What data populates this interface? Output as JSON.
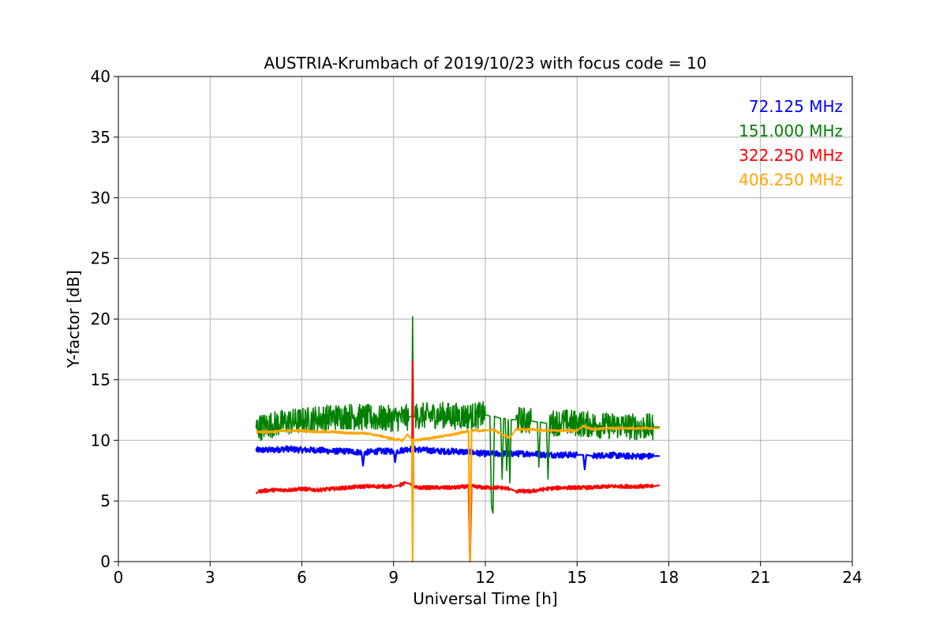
{
  "chart_data": {
    "type": "line",
    "title": "AUSTRIA-Krumbach of 2019/10/23 with focus code = 10",
    "xlabel": "Universal Time [h]",
    "ylabel": "Y-factor [dB]",
    "xlim": [
      0,
      24
    ],
    "ylim": [
      0,
      40
    ],
    "xticks": [
      0,
      3,
      6,
      9,
      12,
      15,
      18,
      21,
      24
    ],
    "yticks": [
      0,
      5,
      10,
      15,
      20,
      25,
      30,
      35,
      40
    ],
    "grid": true,
    "legend_position": "top-right",
    "series": [
      {
        "name": "72.125 MHz",
        "color": "#0000ff",
        "noise": 0.25,
        "x": [
          4.5,
          5.0,
          5.5,
          6.0,
          6.5,
          7.0,
          7.5,
          7.95,
          8.0,
          8.05,
          8.5,
          9.0,
          9.05,
          9.1,
          9.5,
          10.0,
          10.5,
          11.0,
          11.5,
          12.0,
          12.5,
          13.0,
          13.5,
          14.0,
          14.5,
          15.0,
          15.2,
          15.25,
          15.3,
          15.5,
          16.0,
          16.5,
          17.0,
          17.5,
          17.7
        ],
        "y": [
          9.2,
          9.2,
          9.3,
          9.2,
          9.2,
          9.1,
          9.1,
          9.0,
          7.9,
          9.0,
          9.1,
          9.1,
          8.2,
          9.1,
          9.3,
          9.2,
          9.1,
          9.1,
          9.0,
          8.9,
          8.9,
          8.9,
          8.9,
          8.8,
          8.8,
          8.8,
          8.8,
          7.6,
          8.8,
          8.7,
          8.8,
          8.7,
          8.7,
          8.7,
          8.7
        ]
      },
      {
        "name": "151.000 MHz",
        "color": "#008000",
        "noise": 1.1,
        "x": [
          4.5,
          5.0,
          5.5,
          6.0,
          6.5,
          7.0,
          7.5,
          8.0,
          8.5,
          9.0,
          9.5,
          9.6,
          9.62,
          9.65,
          9.7,
          10.0,
          10.5,
          11.0,
          11.5,
          12.0,
          12.15,
          12.2,
          12.25,
          12.3,
          12.35,
          12.4,
          12.5,
          12.55,
          12.6,
          12.65,
          12.7,
          12.75,
          12.8,
          12.85,
          12.9,
          13.0,
          13.5,
          13.7,
          13.75,
          13.8,
          14.0,
          14.05,
          14.1,
          14.5,
          15.0,
          15.5,
          16.0,
          16.5,
          17.0,
          17.5,
          17.7
        ],
        "y": [
          11.0,
          11.3,
          11.5,
          11.6,
          11.8,
          11.9,
          12.0,
          11.9,
          11.8,
          11.8,
          11.9,
          12.0,
          20.2,
          11.9,
          12.0,
          12.0,
          12.1,
          12.0,
          12.0,
          12.1,
          12.0,
          4.5,
          4.0,
          12.0,
          11.9,
          11.9,
          11.8,
          6.8,
          11.8,
          11.8,
          7.5,
          11.7,
          6.5,
          11.7,
          11.7,
          11.7,
          11.6,
          11.5,
          7.8,
          11.5,
          11.4,
          6.8,
          11.4,
          11.5,
          11.4,
          11.3,
          11.2,
          11.2,
          11.1,
          11.1,
          11.1
        ]
      },
      {
        "name": "322.250 MHz",
        "color": "#ff0000",
        "noise": 0.15,
        "x": [
          4.5,
          4.6,
          5.0,
          5.5,
          6.0,
          6.5,
          7.0,
          7.5,
          8.0,
          8.5,
          9.0,
          9.2,
          9.4,
          9.55,
          9.6,
          9.62,
          9.65,
          9.7,
          10.0,
          10.5,
          11.0,
          11.45,
          11.5,
          11.55,
          12.0,
          12.5,
          12.8,
          13.0,
          13.5,
          14.0,
          14.5,
          15.0,
          15.5,
          16.0,
          16.5,
          17.0,
          17.5,
          17.7
        ],
        "y": [
          5.6,
          5.8,
          5.9,
          5.9,
          6.0,
          5.9,
          6.0,
          6.1,
          6.2,
          6.2,
          6.2,
          6.3,
          6.5,
          6.4,
          6.2,
          16.5,
          6.2,
          6.1,
          6.1,
          6.1,
          6.1,
          6.2,
          0.0,
          6.2,
          6.1,
          6.1,
          6.0,
          5.8,
          5.8,
          6.0,
          6.1,
          6.1,
          6.1,
          6.2,
          6.2,
          6.2,
          6.2,
          6.3
        ]
      },
      {
        "name": "406.250 MHz",
        "color": "#ffa500",
        "noise": 0.08,
        "x": [
          4.5,
          5.0,
          5.5,
          6.0,
          6.5,
          7.0,
          7.5,
          8.0,
          8.5,
          9.0,
          9.3,
          9.45,
          9.55,
          9.6,
          9.62,
          9.65,
          9.7,
          10.0,
          10.5,
          11.0,
          11.45,
          11.5,
          11.55,
          12.0,
          12.2,
          12.5,
          12.6,
          12.8,
          13.0,
          13.5,
          14.0,
          14.5,
          15.0,
          15.2,
          15.5,
          16.0,
          16.5,
          17.0,
          17.5,
          17.7
        ],
        "y": [
          10.7,
          10.7,
          10.8,
          10.8,
          10.7,
          10.7,
          10.6,
          10.6,
          10.4,
          10.1,
          10.0,
          10.5,
          10.2,
          10.1,
          0.0,
          10.1,
          10.0,
          10.1,
          10.3,
          10.5,
          10.8,
          0.0,
          10.8,
          10.8,
          10.9,
          10.6,
          10.4,
          10.2,
          10.9,
          10.9,
          10.8,
          10.8,
          10.8,
          11.2,
          10.9,
          11.0,
          11.0,
          11.0,
          11.0,
          11.0
        ]
      }
    ]
  }
}
